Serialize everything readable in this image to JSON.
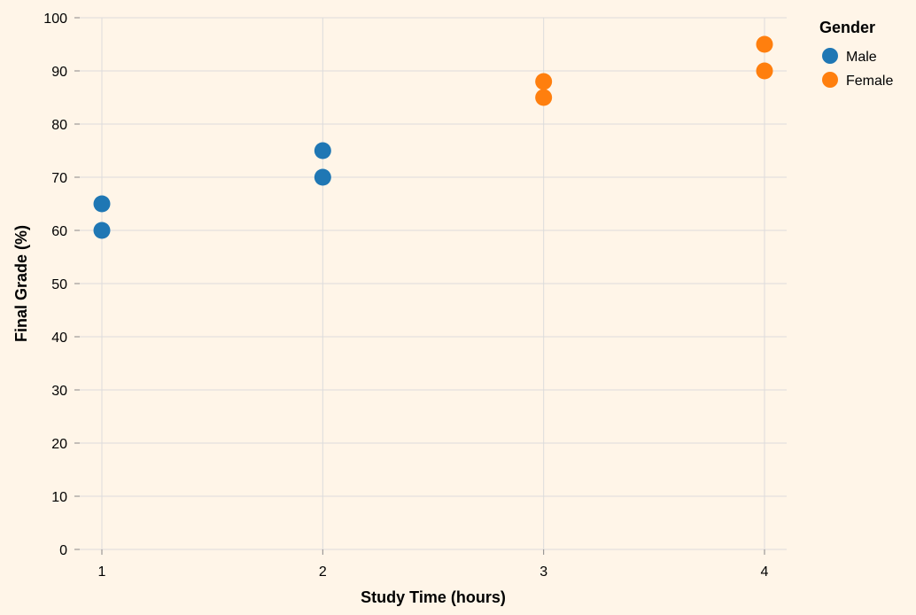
{
  "chart_data": {
    "type": "scatter",
    "xlabel": "Study Time (hours)",
    "ylabel": "Final Grade (%)",
    "xlim": [
      1,
      4
    ],
    "ylim": [
      0,
      100
    ],
    "x_ticks": [
      1,
      2,
      3,
      4
    ],
    "y_ticks": [
      0,
      10,
      20,
      30,
      40,
      50,
      60,
      70,
      80,
      90,
      100
    ],
    "grid": true,
    "legend": {
      "title": "Gender",
      "placement": "top-right",
      "entries": [
        {
          "name": "Male",
          "color": "#1f77b4"
        },
        {
          "name": "Female",
          "color": "#ff7f0e"
        }
      ]
    },
    "series": [
      {
        "name": "Male",
        "color": "#1f77b4",
        "points": [
          [
            1,
            60
          ],
          [
            1,
            65
          ],
          [
            2,
            70
          ],
          [
            2,
            75
          ]
        ]
      },
      {
        "name": "Female",
        "color": "#ff7f0e",
        "points": [
          [
            3,
            85
          ],
          [
            3,
            88
          ],
          [
            4,
            90
          ],
          [
            4,
            95
          ]
        ]
      }
    ]
  }
}
